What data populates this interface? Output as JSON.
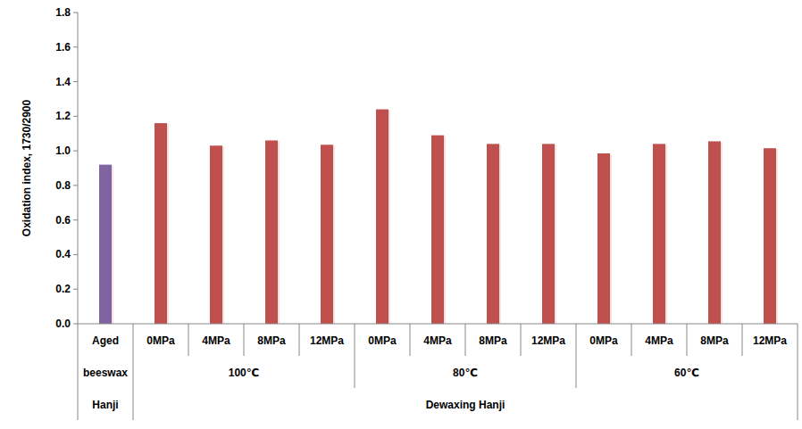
{
  "chart_data": {
    "type": "bar",
    "y_label": "Oxidation index, 1730/2900",
    "categories": [
      "Aged",
      "0MPa",
      "4MPa",
      "8MPa",
      "12MPa",
      "0MPa",
      "4MPa",
      "8MPa",
      "12MPa",
      "0MPa",
      "4MPa",
      "8MPa",
      "12MPa"
    ],
    "category_groups": [
      [
        {
          "label": "beeswax",
          "size": 1
        },
        {
          "label": "100℃",
          "size": 4
        },
        {
          "label": "80℃",
          "size": 4
        },
        {
          "label": "60℃",
          "size": 4
        }
      ],
      [
        {
          "label": "Hanji",
          "size": 1
        },
        {
          "label": "Dewaxing Hanji",
          "size": 12
        }
      ]
    ],
    "values": [
      0.92,
      1.16,
      1.03,
      1.06,
      1.035,
      1.24,
      1.09,
      1.04,
      1.04,
      0.985,
      1.04,
      1.055,
      1.015
    ],
    "colors": [
      "#8064a2",
      "#c0504d",
      "#c0504d",
      "#c0504d",
      "#c0504d",
      "#c0504d",
      "#c0504d",
      "#c0504d",
      "#c0504d",
      "#c0504d",
      "#c0504d",
      "#c0504d",
      "#c0504d"
    ],
    "ylim": [
      0,
      1.8
    ],
    "yticks": [
      {
        "value": 0,
        "label": "0.0"
      },
      {
        "value": 0.2,
        "label": "0.2"
      },
      {
        "value": 0.4,
        "label": "0.4"
      },
      {
        "value": 0.6,
        "label": "0.6"
      },
      {
        "value": 0.8,
        "label": "0.8"
      },
      {
        "value": 1.0,
        "label": "1.0"
      },
      {
        "value": 1.2,
        "label": "1.2"
      },
      {
        "value": 1.4,
        "label": "1.4"
      },
      {
        "value": 1.6,
        "label": "1.6"
      },
      {
        "value": 1.8,
        "label": "1.8"
      }
    ],
    "grid": false
  }
}
